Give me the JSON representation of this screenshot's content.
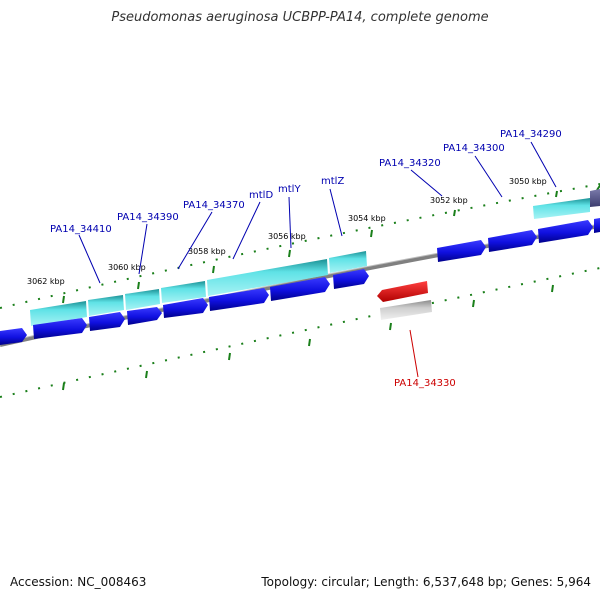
{
  "title": "Pseudomonas aeruginosa UCBPP-PA14, complete genome",
  "footer": {
    "accession": "Accession: NC_008463",
    "summary": "Topology: circular; Length: 6,537,648 bp; Genes: 5,964"
  },
  "scale_labels": [
    "3050 kbp",
    "3052 kbp",
    "3054 kbp",
    "3056 kbp",
    "3058 kbp",
    "3060 kbp",
    "3062 kbp"
  ],
  "gene_labels": {
    "PA14_34290": "PA14_34290",
    "PA14_34300": "PA14_34300",
    "PA14_34320": "PA14_34320",
    "mtlZ": "mtlZ",
    "mtlY": "mtlY",
    "mtlD": "mtlD",
    "PA14_34370": "PA14_34370",
    "PA14_34390": "PA14_34390",
    "PA14_34410": "PA14_34410",
    "PA14_34330": "PA14_34330"
  },
  "colors": {
    "forward_gene": "#1010e0",
    "cds_feature": "#30c8cc",
    "highlight_gene": "#e00000",
    "pseudo_feature": "#b8b8b8",
    "tick": "#1a7f1a",
    "backbone": "#808080",
    "label_blue": "#0000b0",
    "label_red": "#cc0000"
  }
}
